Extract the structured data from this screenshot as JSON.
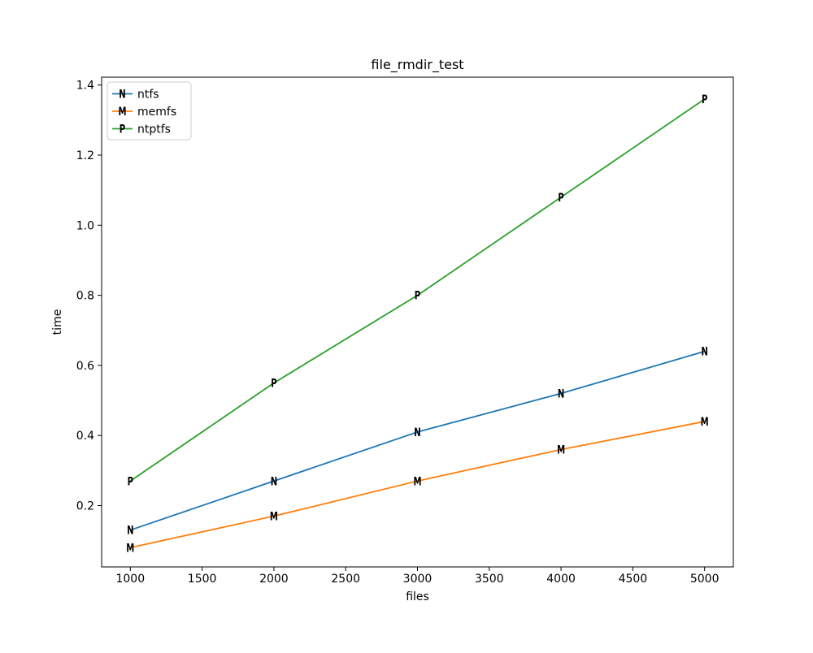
{
  "chart_data": {
    "type": "line",
    "title": "file_rmdir_test",
    "xlabel": "files",
    "ylabel": "time",
    "x": [
      1000,
      2000,
      3000,
      4000,
      5000
    ],
    "series": [
      {
        "name": "ntfs",
        "color": "#1f77b4",
        "marker": "N",
        "values": [
          0.13,
          0.27,
          0.41,
          0.52,
          0.64
        ]
      },
      {
        "name": "memfs",
        "color": "#ff7f0e",
        "marker": "M",
        "values": [
          0.08,
          0.17,
          0.27,
          0.36,
          0.44
        ]
      },
      {
        "name": "ntptfs",
        "color": "#2ca02c",
        "marker": "P",
        "values": [
          0.27,
          0.55,
          0.8,
          1.08,
          1.36
        ]
      }
    ],
    "xlim": [
      800,
      5200
    ],
    "ylim": [
      0.025,
      1.4225
    ],
    "xticks": [
      1000,
      1500,
      2000,
      2500,
      3000,
      3500,
      4000,
      4500,
      5000
    ],
    "xtick_labels": [
      "1000",
      "1500",
      "2000",
      "2500",
      "3000",
      "3500",
      "4000",
      "4500",
      "5000"
    ],
    "yticks": [
      0.2,
      0.4,
      0.6,
      0.8,
      1.0,
      1.2,
      1.4
    ],
    "ytick_labels": [
      "0.2",
      "0.4",
      "0.6",
      "0.8",
      "1.0",
      "1.2",
      "1.4"
    ],
    "grid": false,
    "legend": {
      "position": "upper-left",
      "entries": [
        "ntfs",
        "memfs",
        "ntptfs"
      ]
    },
    "colors": {
      "background": "#ffffff",
      "axis": "#000000",
      "legend_border": "#cccccc"
    }
  }
}
